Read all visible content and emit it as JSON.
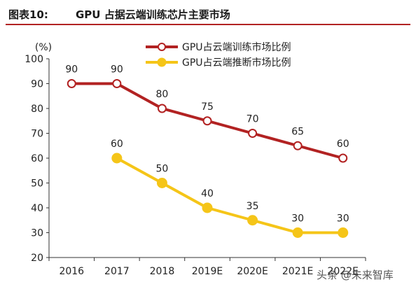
{
  "header": {
    "figure_label": "图表10:",
    "title": "GPU 占据云端训练芯片主要市场"
  },
  "watermark": "头条 @未来智库",
  "colors": {
    "training": "#b22222",
    "inference": "#f5c518",
    "title_rule": "#b22222",
    "axis": "#333333"
  },
  "chart_data": {
    "type": "line",
    "unit_label": "(%)",
    "categories": [
      "2016",
      "2017",
      "2018",
      "2019E",
      "2020E",
      "2021E",
      "2022E"
    ],
    "ylim": [
      20,
      100
    ],
    "yticks": [
      20,
      30,
      40,
      50,
      60,
      70,
      80,
      90,
      100
    ],
    "grid": false,
    "legend_position": "top-right",
    "series": [
      {
        "name": "GPU占云端训练市场比例",
        "values": [
          90,
          90,
          80,
          75,
          70,
          65,
          60
        ],
        "color": "#b22222",
        "marker": "hollow-circle"
      },
      {
        "name": "GPU占云端推断市场比例",
        "values": [
          null,
          60,
          50,
          40,
          35,
          30,
          30
        ],
        "color": "#f5c518",
        "marker": "filled-circle"
      }
    ]
  }
}
